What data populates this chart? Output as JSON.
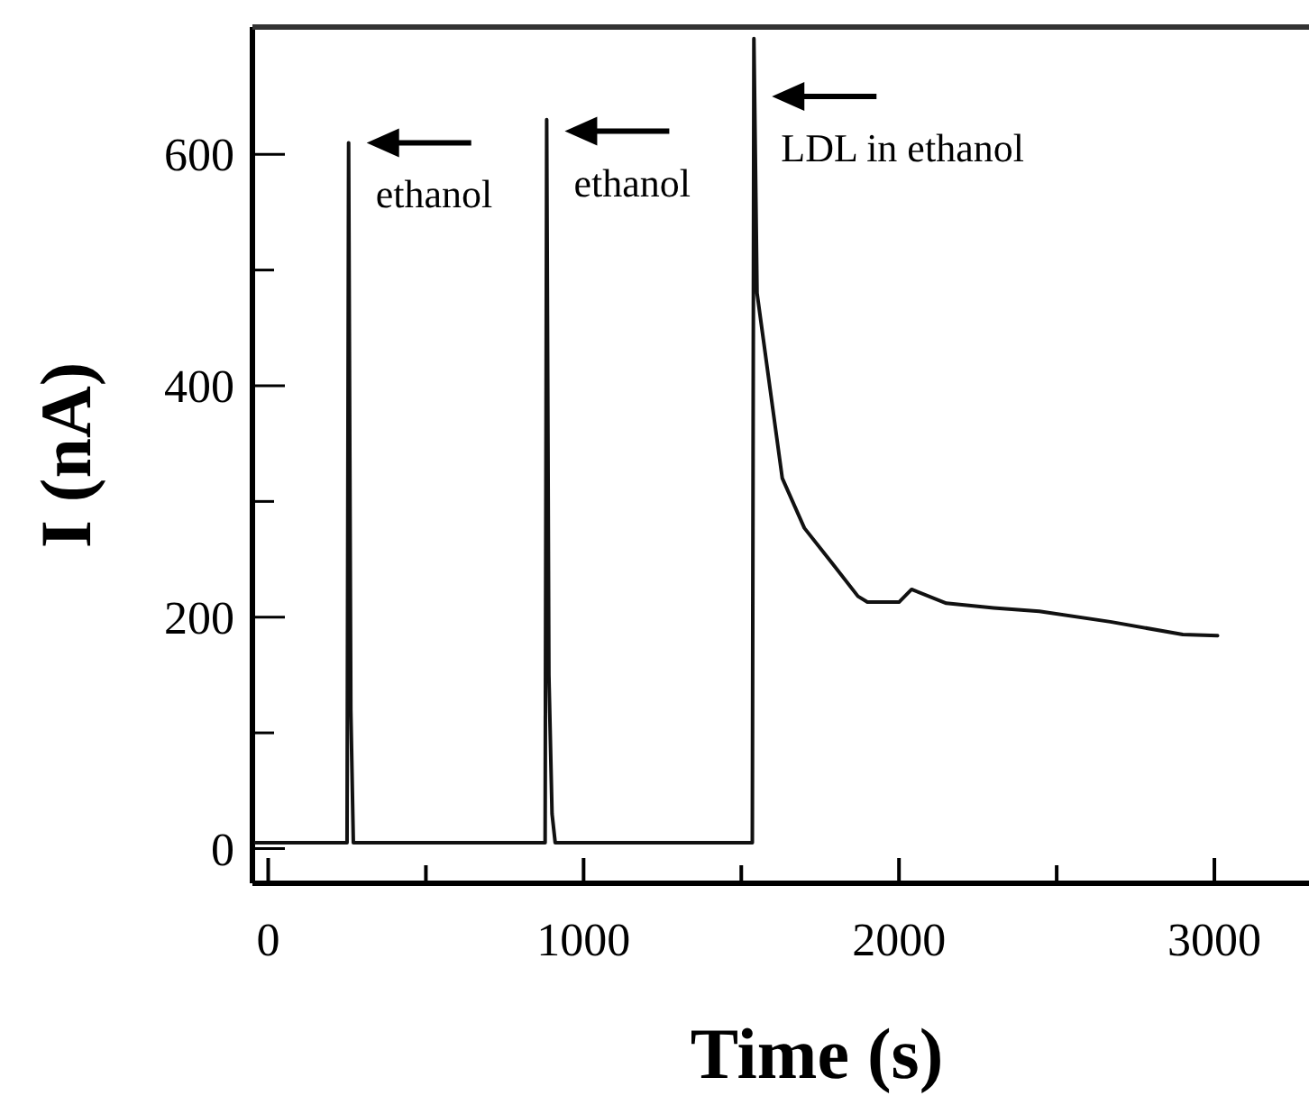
{
  "chart_data": {
    "type": "line",
    "xlabel": "Time (s)",
    "ylabel": "I (nA)",
    "x": [
      -40,
      240,
      250,
      255,
      262,
      270,
      870,
      878,
      883,
      890,
      900,
      910,
      1530,
      1535,
      1540,
      1550,
      1570,
      1600,
      1630,
      1700,
      1790,
      1870,
      1900,
      2000,
      2040,
      2150,
      2300,
      2445,
      2670,
      2900,
      3010
    ],
    "series": [
      {
        "color": "#111111",
        "values": [
          5,
          5,
          5,
          610,
          120,
          5,
          5,
          5,
          630,
          150,
          30,
          5,
          5,
          5,
          700,
          480,
          440,
          380,
          320,
          277,
          246,
          218,
          213,
          213,
          224,
          212,
          208,
          205,
          196,
          185,
          184
        ]
      }
    ],
    "xlim": [
      -50,
      3300
    ],
    "ylim": [
      -30,
      710
    ],
    "xticks": [
      0,
      {
        "value": 500,
        "label": null
      },
      1000,
      {
        "value": 1500,
        "label": null
      },
      2000,
      {
        "value": 2500,
        "label": null
      },
      3000
    ],
    "yticks": [
      0,
      {
        "value": 100,
        "label": null
      },
      200,
      {
        "value": 300,
        "label": null
      },
      400,
      {
        "value": 500,
        "label": null
      },
      600
    ],
    "grid": false,
    "marker": "none",
    "line_style": "solid",
    "annotations": [
      {
        "text": "ethanol",
        "x": 255,
        "y": 610
      },
      {
        "text": "ethanol",
        "x": 883,
        "y": 620
      },
      {
        "text": "LDL in ethanol",
        "x": 1540,
        "y": 650
      }
    ]
  }
}
